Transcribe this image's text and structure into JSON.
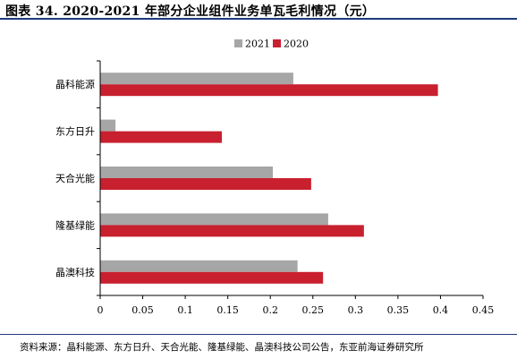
{
  "title": "图表 34. 2020-2021 年部分企业组件业务单瓦毛利情况（元）",
  "source": "资料来源：晶科能源、东方日升、天合光能、隆基绿能、晶澳科技公司公告，东亚前海证券研究所",
  "colors": {
    "s2021": "#a6a6a6",
    "s2020": "#c8202f",
    "rule": "#1f3a7a"
  },
  "chart_data": {
    "type": "bar",
    "orientation": "horizontal",
    "title": "",
    "xlabel": "",
    "ylabel": "",
    "legend_position": "top-center",
    "grid": false,
    "categories": [
      "晶科能源",
      "东方日升",
      "天合光能",
      "隆基绿能",
      "晶澳科技"
    ],
    "series": [
      {
        "name": "2021",
        "values": [
          0.227,
          0.018,
          0.203,
          0.268,
          0.232
        ]
      },
      {
        "name": "2020",
        "values": [
          0.397,
          0.143,
          0.248,
          0.31,
          0.262
        ]
      }
    ],
    "xlim": [
      0,
      0.45
    ],
    "xticks": [
      "0",
      "0.05",
      "0.1",
      "0.15",
      "0.2",
      "0.25",
      "0.3",
      "0.35",
      "0.4",
      "0.45"
    ]
  }
}
